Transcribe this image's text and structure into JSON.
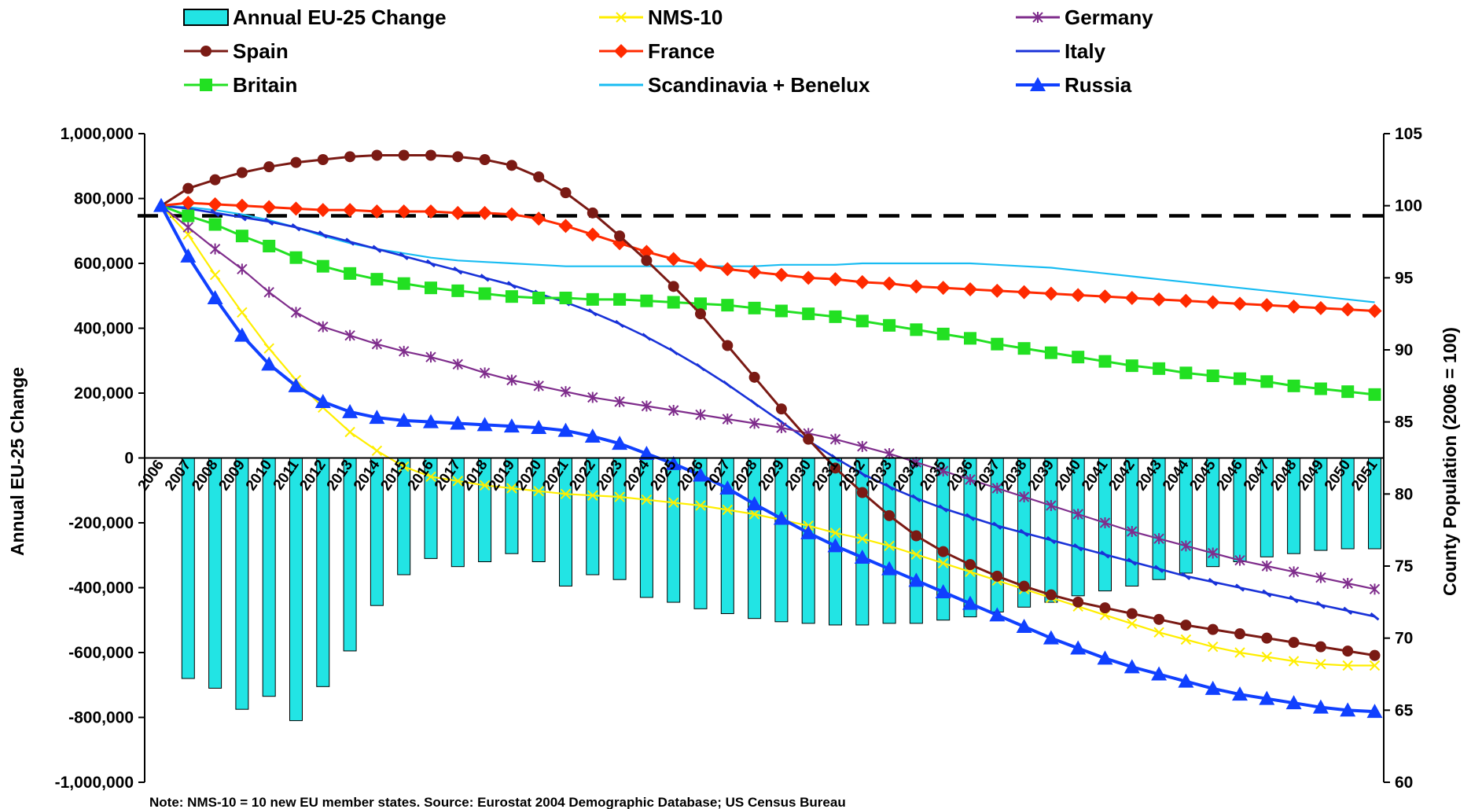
{
  "note": "Note: NMS-10 = 10 new EU member states. Source: Eurostat 2004 Demographic Database; US Census Bureau",
  "colors": {
    "bar_fill": "#22e4e4",
    "bar_stroke": "#000000",
    "nms10": "#ffee00",
    "germany": "#7f2d8c",
    "spain": "#7a1a14",
    "france": "#ff2a00",
    "italy": "#1932d8",
    "britain": "#22e022",
    "scandinavia": "#19bcf2",
    "russia": "#1040ff",
    "reference_line": "#000000"
  },
  "chart_data": {
    "type": "bar+line",
    "title": "",
    "ylabel": "Annual EU-25 Change",
    "y2label": "County Population (2006 = 100)",
    "ylim": [
      -1000000,
      1000000
    ],
    "y2lim": [
      60,
      105
    ],
    "yticks": [
      "1,000,000",
      "800,000",
      "600,000",
      "400,000",
      "200,000",
      "0",
      "-200,000",
      "-400,000",
      "-600,000",
      "-800,000",
      "-1,000,000"
    ],
    "y2ticks": [
      "105",
      "100",
      "95",
      "90",
      "85",
      "80",
      "75",
      "70",
      "65",
      "60"
    ],
    "grid": false,
    "legend_position": "top",
    "x": [
      "2006",
      "2007",
      "2008",
      "2009",
      "2010",
      "2011",
      "2012",
      "2013",
      "2014",
      "2015",
      "2016",
      "2017",
      "2018",
      "2019",
      "2020",
      "2021",
      "2022",
      "2023",
      "2024",
      "2025",
      "2026",
      "2027",
      "2028",
      "2029",
      "2030",
      "2031",
      "2032",
      "2033",
      "2034",
      "2035",
      "2036",
      "2037",
      "2038",
      "2039",
      "2040",
      "2041",
      "2042",
      "2043",
      "2044",
      "2045",
      "2046",
      "2047",
      "2048",
      "2049",
      "2050",
      "2051"
    ],
    "reference_line": {
      "axis": "y2",
      "value": 99.3,
      "style": "dashed"
    },
    "bar_series": {
      "name": "Annual EU-25 Change",
      "x": [
        "2007",
        "2008",
        "2009",
        "2010",
        "2011",
        "2012",
        "2013",
        "2014",
        "2015",
        "2016",
        "2017",
        "2018",
        "2019",
        "2020",
        "2021",
        "2022",
        "2023",
        "2024",
        "2025",
        "2026",
        "2027",
        "2028",
        "2029",
        "2030",
        "2031",
        "2032",
        "2033",
        "2034",
        "2035",
        "2036",
        "2037",
        "2038",
        "2039",
        "2040",
        "2041",
        "2042",
        "2043",
        "2044",
        "2045",
        "2046",
        "2047",
        "2048",
        "2049",
        "2050",
        "2051"
      ],
      "values": [
        -680000,
        -710000,
        -775000,
        -735000,
        -810000,
        -705000,
        -595000,
        -455000,
        -360000,
        -310000,
        -335000,
        -320000,
        -295000,
        -320000,
        -395000,
        -360000,
        -375000,
        -430000,
        -445000,
        -465000,
        -480000,
        -495000,
        -505000,
        -510000,
        -515000,
        -515000,
        -510000,
        -510000,
        -500000,
        -490000,
        -475000,
        -460000,
        -445000,
        -425000,
        -410000,
        -395000,
        -375000,
        -355000,
        -335000,
        -320000,
        -305000,
        -295000,
        -285000,
        -280000,
        -280000
      ]
    },
    "series": [
      {
        "name": "NMS-10",
        "axis": "y2",
        "marker": "x",
        "values": [
          100,
          98.0,
          95.2,
          92.6,
          90.1,
          87.9,
          86.0,
          84.3,
          83.0,
          81.9,
          81.2,
          80.9,
          80.6,
          80.4,
          80.2,
          80.0,
          79.9,
          79.8,
          79.6,
          79.4,
          79.2,
          78.9,
          78.6,
          78.2,
          77.8,
          77.3,
          76.9,
          76.4,
          75.8,
          75.2,
          74.6,
          74.0,
          73.4,
          72.8,
          72.2,
          71.6,
          71.0,
          70.4,
          69.9,
          69.4,
          69.0,
          68.7,
          68.4,
          68.2,
          68.1,
          68.1
        ]
      },
      {
        "name": "Germany",
        "axis": "y2",
        "marker": "asterisk",
        "values": [
          100,
          98.5,
          97.0,
          95.6,
          94.0,
          92.6,
          91.6,
          91.0,
          90.4,
          89.9,
          89.5,
          89.0,
          88.4,
          87.9,
          87.5,
          87.1,
          86.7,
          86.4,
          86.1,
          85.8,
          85.5,
          85.2,
          84.9,
          84.6,
          84.2,
          83.8,
          83.3,
          82.8,
          82.2,
          81.6,
          81.0,
          80.4,
          79.8,
          79.2,
          78.6,
          78.0,
          77.4,
          76.9,
          76.4,
          75.9,
          75.4,
          75.0,
          74.6,
          74.2,
          73.8,
          73.4
        ]
      },
      {
        "name": "Spain",
        "axis": "y2",
        "marker": "circle",
        "values": [
          100,
          101.2,
          101.8,
          102.3,
          102.7,
          103.0,
          103.2,
          103.4,
          103.5,
          103.5,
          103.5,
          103.4,
          103.2,
          102.8,
          102.0,
          100.9,
          99.5,
          97.9,
          96.2,
          94.4,
          92.5,
          90.3,
          88.1,
          85.9,
          83.8,
          81.8,
          80.1,
          78.5,
          77.1,
          76.0,
          75.1,
          74.3,
          73.6,
          73.0,
          72.5,
          72.1,
          71.7,
          71.3,
          70.9,
          70.6,
          70.3,
          70.0,
          69.7,
          69.4,
          69.1,
          68.8
        ]
      },
      {
        "name": "France",
        "axis": "y2",
        "marker": "diamond",
        "values": [
          100,
          100.2,
          100.1,
          100.0,
          99.9,
          99.8,
          99.7,
          99.7,
          99.6,
          99.6,
          99.6,
          99.5,
          99.5,
          99.4,
          99.1,
          98.6,
          98.0,
          97.4,
          96.8,
          96.3,
          95.9,
          95.6,
          95.4,
          95.2,
          95.0,
          94.9,
          94.7,
          94.6,
          94.4,
          94.3,
          94.2,
          94.1,
          94.0,
          93.9,
          93.8,
          93.7,
          93.6,
          93.5,
          93.4,
          93.3,
          93.2,
          93.1,
          93.0,
          92.9,
          92.8,
          92.7
        ]
      },
      {
        "name": "Italy",
        "axis": "y2",
        "marker": "tick",
        "values": [
          100,
          99.8,
          99.5,
          99.2,
          98.9,
          98.5,
          98.0,
          97.5,
          97.0,
          96.5,
          96.0,
          95.5,
          95.0,
          94.5,
          93.9,
          93.3,
          92.6,
          91.8,
          90.9,
          89.9,
          88.8,
          87.6,
          86.3,
          85.0,
          83.7,
          82.5,
          81.4,
          80.5,
          79.7,
          79.0,
          78.4,
          77.8,
          77.3,
          76.8,
          76.3,
          75.8,
          75.3,
          74.8,
          74.3,
          73.9,
          73.5,
          73.1,
          72.7,
          72.3,
          71.9,
          71.5
        ]
      },
      {
        "name": "Britain",
        "axis": "y2",
        "marker": "square",
        "values": [
          100,
          99.3,
          98.7,
          97.9,
          97.2,
          96.4,
          95.8,
          95.3,
          94.9,
          94.6,
          94.3,
          94.1,
          93.9,
          93.7,
          93.6,
          93.6,
          93.5,
          93.5,
          93.4,
          93.3,
          93.2,
          93.1,
          92.9,
          92.7,
          92.5,
          92.3,
          92.0,
          91.7,
          91.4,
          91.1,
          90.8,
          90.4,
          90.1,
          89.8,
          89.5,
          89.2,
          88.9,
          88.7,
          88.4,
          88.2,
          88.0,
          87.8,
          87.5,
          87.3,
          87.1,
          86.9
        ]
      },
      {
        "name": "Scandinavia + Benelux",
        "axis": "y2",
        "marker": "none",
        "values": [
          100,
          99.9,
          99.7,
          99.4,
          99.0,
          98.5,
          97.9,
          97.4,
          97.0,
          96.7,
          96.4,
          96.2,
          96.1,
          96.0,
          95.9,
          95.8,
          95.8,
          95.8,
          95.8,
          95.8,
          95.8,
          95.8,
          95.8,
          95.9,
          95.9,
          95.9,
          96.0,
          96.0,
          96.0,
          96.0,
          96.0,
          95.9,
          95.8,
          95.7,
          95.5,
          95.3,
          95.1,
          94.9,
          94.7,
          94.5,
          94.3,
          94.1,
          93.9,
          93.7,
          93.5,
          93.3
        ]
      },
      {
        "name": "Russia",
        "axis": "y2",
        "marker": "triangle",
        "values": [
          100,
          96.5,
          93.6,
          91.0,
          89.0,
          87.5,
          86.4,
          85.7,
          85.3,
          85.1,
          85.0,
          84.9,
          84.8,
          84.7,
          84.6,
          84.4,
          84.0,
          83.5,
          82.8,
          82.1,
          81.3,
          80.4,
          79.3,
          78.3,
          77.3,
          76.4,
          75.6,
          74.8,
          74.0,
          73.2,
          72.4,
          71.6,
          70.8,
          70.0,
          69.3,
          68.6,
          68.0,
          67.5,
          67.0,
          66.5,
          66.1,
          65.8,
          65.5,
          65.2,
          65.0,
          64.9
        ]
      }
    ]
  }
}
